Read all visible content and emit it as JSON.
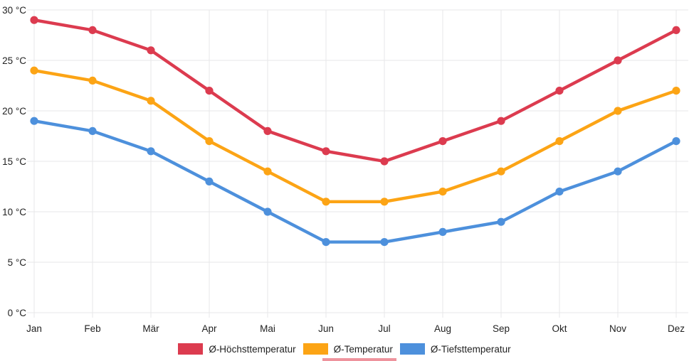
{
  "chart_data": {
    "type": "line",
    "title": "",
    "categories": [
      "Jan",
      "Feb",
      "Mär",
      "Apr",
      "Mai",
      "Jun",
      "Jul",
      "Aug",
      "Sep",
      "Okt",
      "Nov",
      "Dez"
    ],
    "series": [
      {
        "name": "Ø-Höchsttemperatur",
        "color": "#dc3b4f",
        "values": [
          29,
          28,
          26,
          22,
          18,
          16,
          15,
          17,
          19,
          22,
          25,
          28
        ]
      },
      {
        "name": "Ø-Temperatur",
        "color": "#fca415",
        "values": [
          24,
          23,
          21,
          17,
          14,
          11,
          11,
          12,
          14,
          17,
          20,
          22
        ]
      },
      {
        "name": "Ø-Tiefsttemperatur",
        "color": "#4d90dc",
        "values": [
          19,
          18,
          16,
          13,
          10,
          7,
          7,
          8,
          9,
          12,
          14,
          17
        ]
      }
    ],
    "xlabel": "",
    "ylabel": "",
    "ylim": [
      0,
      30
    ],
    "ytick_values": [
      0,
      5,
      10,
      15,
      20,
      25,
      30
    ],
    "ytick_labels": [
      "0 °C",
      "5 °C",
      "10 °C",
      "15 °C",
      "20 °C",
      "25 °C",
      "30 °C"
    ],
    "grid": true,
    "legend_position": "bottom"
  },
  "styles": {
    "grid_color": "#e7e7e9",
    "text_color": "#222222",
    "background": "#ffffff",
    "artifact_color": "rgba(224,59,76,0.55)"
  }
}
